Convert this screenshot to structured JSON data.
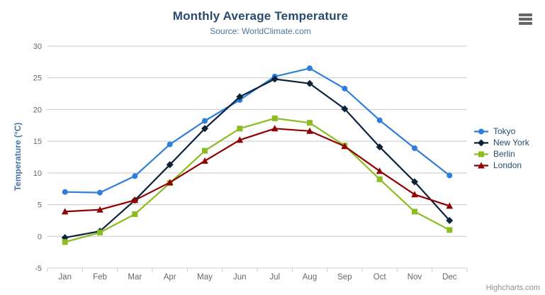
{
  "chart_data": {
    "type": "line",
    "title": "Monthly Average Temperature",
    "subtitle": "Source: WorldClimate.com",
    "xlabel": "",
    "ylabel": "Temperature (°C)",
    "ylim": [
      -5,
      30
    ],
    "yticks": [
      30,
      25,
      20,
      15,
      10,
      5,
      0,
      -5
    ],
    "grid": "horizontal",
    "legend_position": "right",
    "categories": [
      "Jan",
      "Feb",
      "Mar",
      "Apr",
      "May",
      "Jun",
      "Jul",
      "Aug",
      "Sep",
      "Oct",
      "Nov",
      "Dec"
    ],
    "series": [
      {
        "name": "Tokyo",
        "color": "#2f7ed8",
        "marker": "circle",
        "values": [
          7.0,
          6.9,
          9.5,
          14.5,
          18.2,
          21.5,
          25.2,
          26.5,
          23.3,
          18.3,
          13.9,
          9.6
        ]
      },
      {
        "name": "New York",
        "color": "#0d233a",
        "marker": "diamond",
        "values": [
          -0.2,
          0.8,
          5.7,
          11.3,
          17.0,
          22.0,
          24.8,
          24.1,
          20.1,
          14.1,
          8.6,
          2.5
        ]
      },
      {
        "name": "Berlin",
        "color": "#8bbc21",
        "marker": "square",
        "values": [
          -0.9,
          0.6,
          3.5,
          8.4,
          13.5,
          17.0,
          18.6,
          17.9,
          14.3,
          9.0,
          3.9,
          1.0
        ]
      },
      {
        "name": "London",
        "color": "#910000",
        "marker": "triangle",
        "values": [
          3.9,
          4.2,
          5.7,
          8.5,
          11.9,
          15.2,
          17.0,
          16.6,
          14.2,
          10.3,
          6.6,
          4.8
        ]
      }
    ]
  },
  "credit": {
    "label": "Highcharts.com"
  },
  "icons": {
    "context_menu": "hamburger-icon"
  },
  "colors": {
    "title": "#274b6d",
    "subtitle": "#4d759e",
    "axis_labels": "#666666",
    "y_axis_title": "#4572a7",
    "grid_line": "#c8c8c8",
    "axis_line": "#c0d0e0",
    "legend_text": "#274b6d",
    "credit_text": "#909090",
    "menu_icon": "#666666"
  }
}
